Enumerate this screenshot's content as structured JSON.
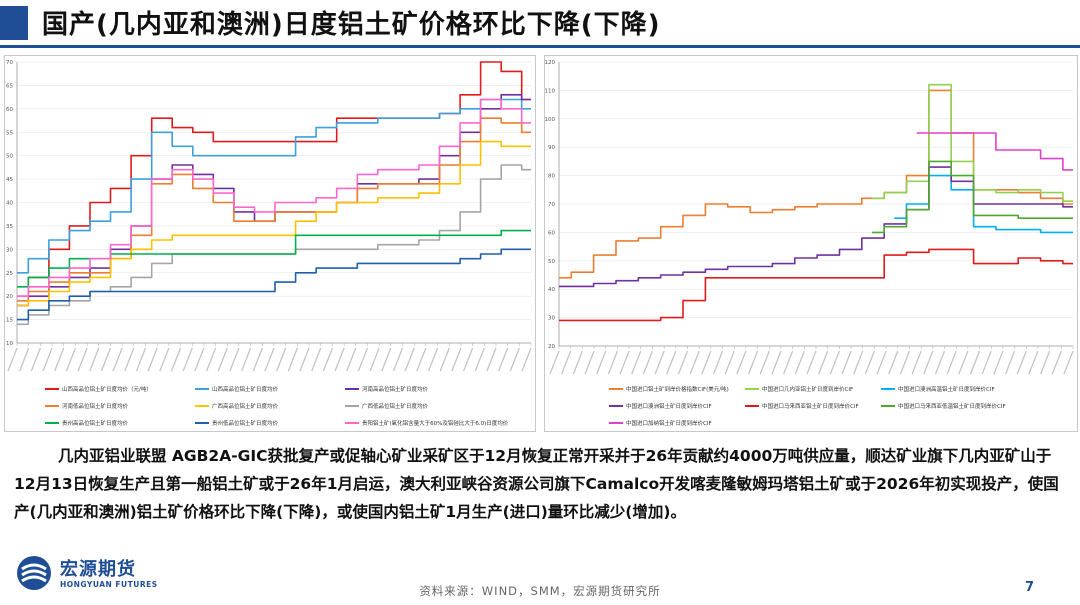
{
  "slide": {
    "title": "国产(几内亚和澳洲)日度铝土矿价格环比下降(下降)",
    "body": "几内亚铝业联盟 AGB2A-GIC获批复产或促轴心矿业采矿区于12月恢复正常开采并于26年贡献约4000万吨供应量，顺达矿业旗下几内亚矿山于12月13日恢复生产且第一船铝土矿或于26年1月启运，澳大利亚峡谷资源公司旗下Camalco开发喀麦隆敏姆玛塔铝土矿或于2026年初实现投产，使国产(几内亚和澳洲)铝土矿价格环比下降(下降)，或使国内铝土矿1月生产(进口)量环比减少(增加)。",
    "source": "资料来源：WIND，SMM，宏源期货研究所",
    "page_number": "7",
    "logo": {
      "cn": "宏源期货",
      "en": "HONGYUAN FUTURES"
    }
  },
  "colors": {
    "brand": "#1f4e96"
  },
  "chart_data": [
    {
      "type": "line",
      "ylim": [
        10,
        70
      ],
      "yticks": [
        "10",
        "15",
        "20",
        "25",
        "30",
        "35",
        "40",
        "45",
        "50",
        "55",
        "60",
        "65",
        "70"
      ],
      "x_labels_note": "dates from 2019 to 2025 (rotated, illegible)",
      "n_points": 26,
      "legend": [
        "山西高品位铝土矿日度均价（元/吨）",
        "山西高品位铝土矿日度均价",
        "河南高品位铝土矿日度均价",
        "河南低品位铝土矿日度均价",
        "广西高品位铝土矿日度均价",
        "广西低品位铝土矿日度均价",
        "贵州高品位铝土矿日度均价",
        "贵州低品位铝土矿日度均价",
        "贵阳铝土矿(氧化铝含量大于60%及铝硅比大于6.0)日度均价"
      ],
      "series": [
        {
          "color": "#e31a1c",
          "values": [
            20,
            24,
            30,
            35,
            40,
            43,
            50,
            58,
            56,
            55,
            53,
            53,
            53,
            53,
            53,
            53,
            58,
            58,
            58,
            58,
            58,
            59,
            63,
            70,
            68,
            62
          ]
        },
        {
          "color": "#3aa0e0",
          "values": [
            25,
            28,
            32,
            34,
            36,
            38,
            45,
            55,
            52,
            50,
            50,
            50,
            50,
            50,
            54,
            56,
            57,
            57,
            58,
            58,
            58,
            59,
            60,
            62,
            62,
            60
          ]
        },
        {
          "color": "#7030a0",
          "values": [
            18,
            20,
            22,
            24,
            26,
            30,
            35,
            45,
            48,
            46,
            43,
            38,
            36,
            38,
            38,
            38,
            40,
            44,
            44,
            44,
            45,
            50,
            55,
            60,
            63,
            62
          ]
        },
        {
          "color": "#ed7d31",
          "values": [
            19,
            21,
            23,
            25,
            25,
            28,
            33,
            44,
            46,
            43,
            40,
            36,
            36,
            38,
            38,
            38,
            40,
            43,
            44,
            44,
            44,
            48,
            53,
            58,
            57,
            55
          ]
        },
        {
          "color": "#ffc000",
          "values": [
            18,
            19,
            21,
            23,
            24,
            28,
            30,
            32,
            33,
            33,
            33,
            33,
            33,
            33,
            36,
            38,
            40,
            40,
            41,
            41,
            42,
            44,
            48,
            53,
            52,
            52
          ]
        },
        {
          "color": "#a5a5a5",
          "values": [
            14,
            16,
            18,
            19,
            21,
            22,
            24,
            27,
            29,
            29,
            29,
            29,
            29,
            29,
            30,
            30,
            30,
            30,
            31,
            31,
            32,
            34,
            38,
            45,
            48,
            47
          ]
        },
        {
          "color": "#00b050",
          "values": [
            22,
            24,
            26,
            28,
            28,
            29,
            29,
            29,
            29,
            29,
            29,
            29,
            29,
            29,
            33,
            33,
            33,
            33,
            33,
            33,
            33,
            33,
            33,
            33,
            34,
            34
          ]
        },
        {
          "color": "#1f5fae",
          "values": [
            15,
            17,
            19,
            20,
            21,
            21,
            21,
            21,
            21,
            21,
            21,
            21,
            21,
            23,
            25,
            26,
            26,
            27,
            27,
            27,
            27,
            27,
            28,
            29,
            30,
            30
          ]
        },
        {
          "color": "#ff66cc",
          "values": [
            20,
            22,
            24,
            26,
            28,
            31,
            35,
            45,
            47,
            45,
            42,
            39,
            38,
            40,
            40,
            41,
            43,
            46,
            47,
            47,
            48,
            52,
            57,
            62,
            60,
            57
          ]
        }
      ]
    },
    {
      "type": "line",
      "ylim": [
        20,
        120
      ],
      "yticks": [
        "20",
        "30",
        "40",
        "50",
        "60",
        "70",
        "80",
        "90",
        "100",
        "110",
        "120"
      ],
      "x_labels_note": "dates from 2022 to 2025 (rotated, illegible)",
      "n_points": 24,
      "legend": [
        "中国进口铝土矿到岸价格指数CIF(美元/吨)",
        "中国进口几内亚铝土矿日度到岸价CIF",
        "中国进口澳洲高温铝土矿日度到岸价CIF",
        "中国进口澳洲铝土矿日度到岸价CIF",
        "中国进口马来西亚铝土矿日度到岸价CIF",
        "中国进口马来西亚低温铝土矿日度到岸价CIF",
        "中国进口加纳铝土矿日度到岸价CIF"
      ],
      "series": [
        {
          "color": "#ed7d31",
          "values": [
            44,
            46,
            52,
            57,
            58,
            62,
            66,
            70,
            69,
            67,
            68,
            69,
            70,
            70,
            72,
            74,
            80,
            110,
            95,
            75,
            75,
            74,
            72,
            70
          ]
        },
        {
          "color": "#92d050",
          "values": [
            null,
            null,
            null,
            null,
            null,
            null,
            null,
            null,
            null,
            null,
            null,
            null,
            null,
            null,
            72,
            74,
            78,
            112,
            85,
            75,
            74,
            75,
            74,
            71
          ]
        },
        {
          "color": "#00b0f0",
          "values": [
            null,
            null,
            null,
            null,
            null,
            null,
            null,
            null,
            null,
            null,
            null,
            null,
            null,
            null,
            null,
            65,
            70,
            80,
            75,
            62,
            61,
            61,
            60,
            60
          ]
        },
        {
          "color": "#7030a0",
          "values": [
            41,
            41,
            42,
            43,
            44,
            45,
            46,
            47,
            48,
            48,
            49,
            51,
            52,
            54,
            58,
            63,
            68,
            83,
            78,
            70,
            70,
            70,
            70,
            69
          ]
        },
        {
          "color": "#e31a1c",
          "values": [
            29,
            29,
            29,
            29,
            29,
            30,
            36,
            44,
            44,
            44,
            44,
            44,
            44,
            44,
            44,
            52,
            53,
            54,
            54,
            49,
            49,
            51,
            50,
            49
          ]
        },
        {
          "color": "#4ea72e",
          "values": [
            null,
            null,
            null,
            null,
            null,
            null,
            null,
            null,
            null,
            null,
            null,
            null,
            null,
            null,
            60,
            62,
            68,
            85,
            80,
            66,
            66,
            65,
            65,
            65
          ]
        },
        {
          "color": "#e040d0",
          "values": [
            null,
            null,
            null,
            null,
            null,
            null,
            null,
            null,
            null,
            null,
            null,
            null,
            null,
            null,
            null,
            null,
            95,
            95,
            95,
            95,
            89,
            89,
            86,
            82
          ]
        }
      ]
    }
  ]
}
